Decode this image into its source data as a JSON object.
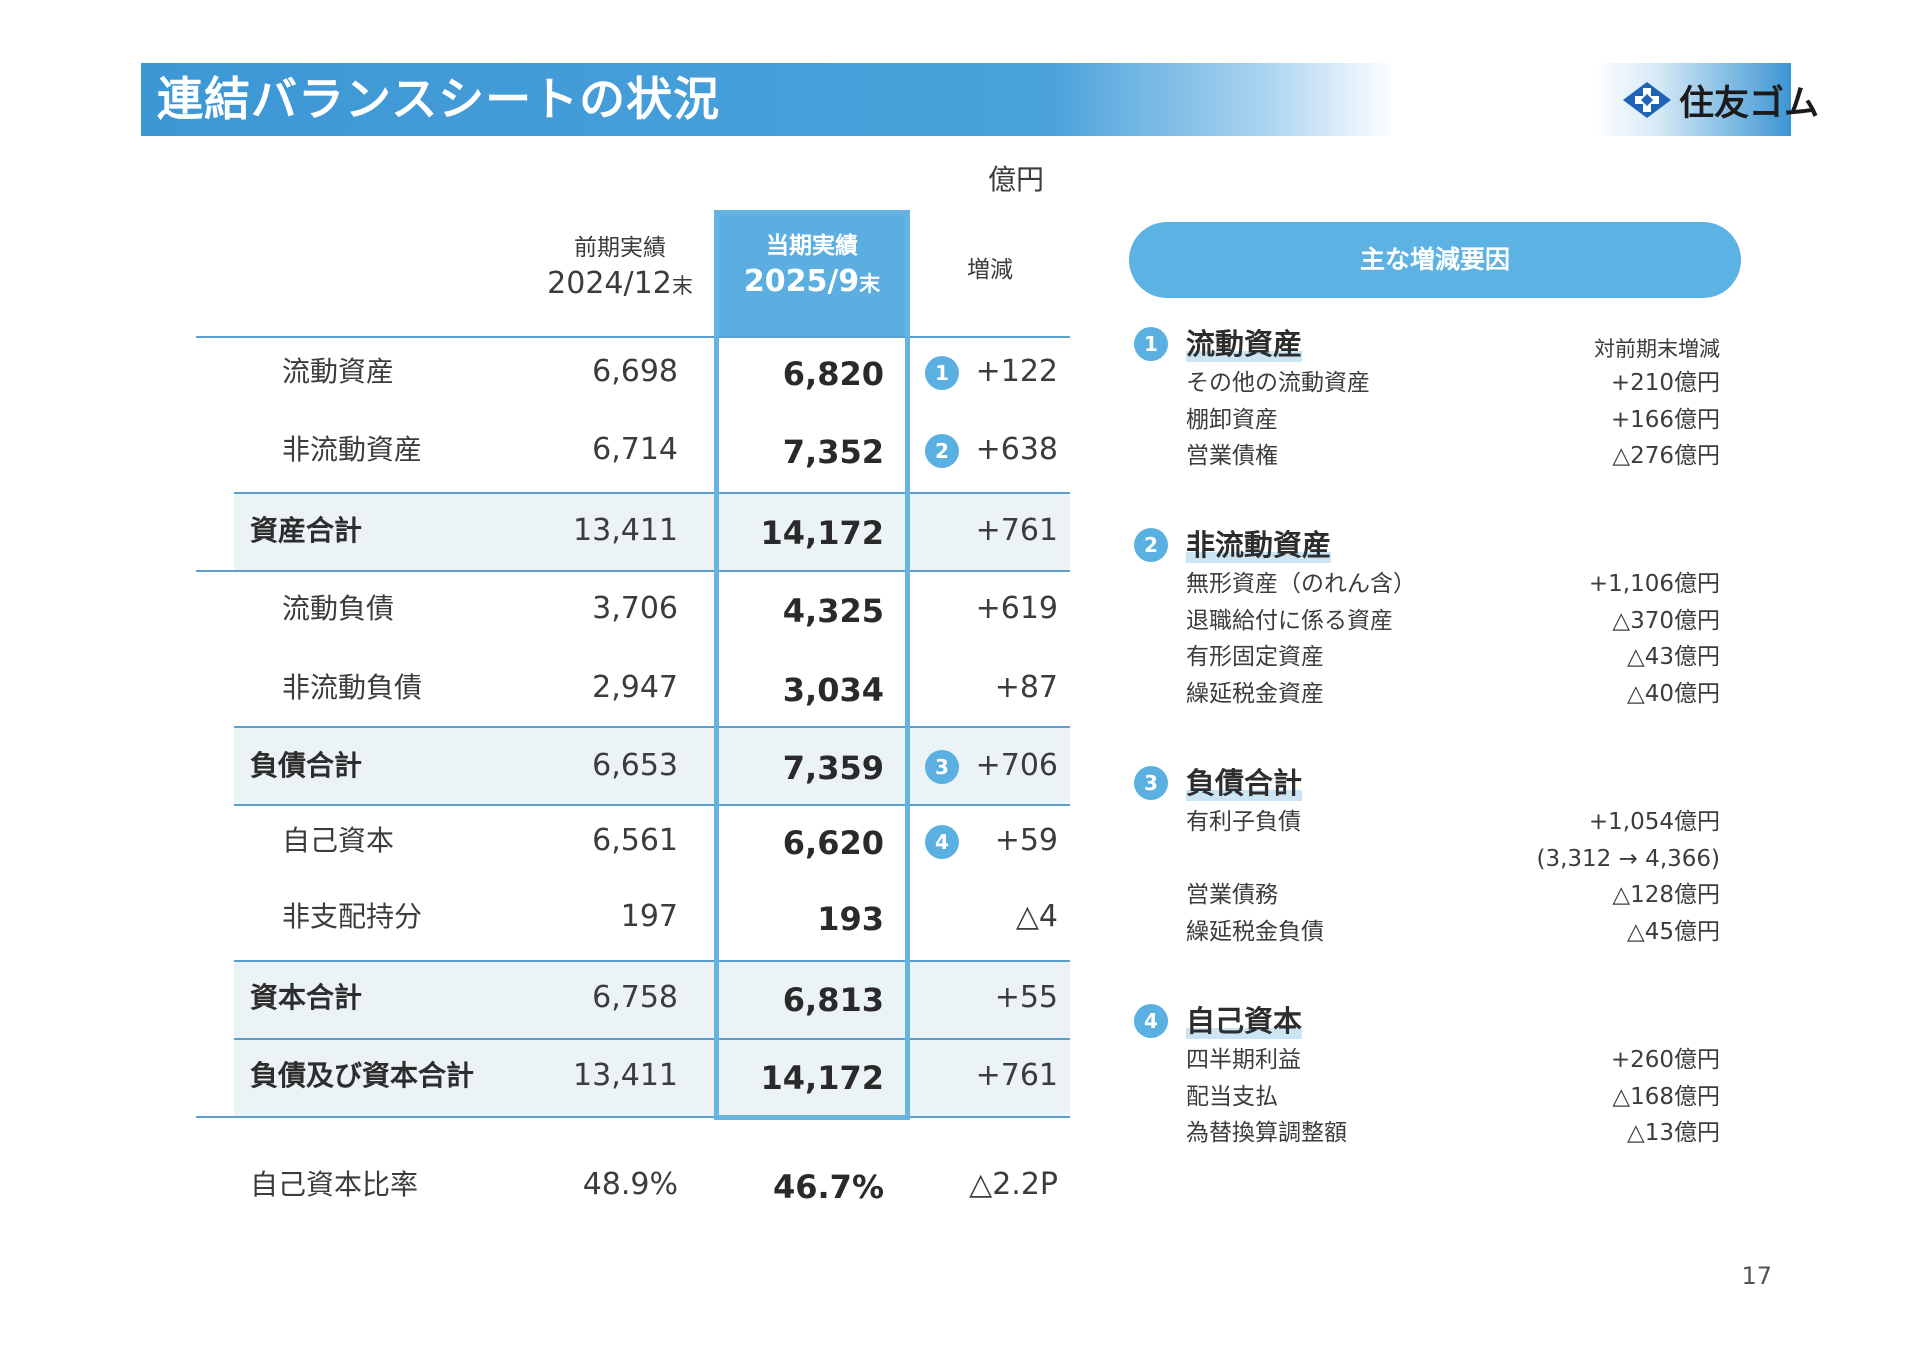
{
  "header": {
    "title": "連結バランスシートの状況",
    "logo_text": "住友ゴム"
  },
  "unit": "億円",
  "table": {
    "headers": {
      "prev": {
        "line1": "前期実績",
        "line2": "2024/12",
        "suffix": "末"
      },
      "curr": {
        "line1": "当期実績",
        "line2": "2025/9",
        "suffix": "末"
      },
      "diff": "増減"
    },
    "rows": [
      {
        "label": "流動資産",
        "prev": "6,698",
        "curr": "6,820",
        "diff": "+122",
        "marker": "1"
      },
      {
        "label": "非流動資産",
        "prev": "6,714",
        "curr": "7,352",
        "diff": "+638",
        "marker": "2"
      },
      {
        "label": "資産合計",
        "prev": "13,411",
        "curr": "14,172",
        "diff": "+761",
        "marker": ""
      },
      {
        "label": "流動負債",
        "prev": "3,706",
        "curr": "4,325",
        "diff": "+619",
        "marker": ""
      },
      {
        "label": "非流動負債",
        "prev": "2,947",
        "curr": "3,034",
        "diff": "+87",
        "marker": ""
      },
      {
        "label": "負債合計",
        "prev": "6,653",
        "curr": "7,359",
        "diff": "+706",
        "marker": "3"
      },
      {
        "label": "自己資本",
        "prev": "6,561",
        "curr": "6,620",
        "diff": "+59",
        "marker": "4"
      },
      {
        "label": "非支配持分",
        "prev": "197",
        "curr": "193",
        "diff": "△4",
        "marker": ""
      },
      {
        "label": "資本合計",
        "prev": "6,758",
        "curr": "6,813",
        "diff": "+55",
        "marker": ""
      },
      {
        "label": "負債及び資本合計",
        "prev": "13,411",
        "curr": "14,172",
        "diff": "+761",
        "marker": ""
      }
    ],
    "ratio": {
      "label": "自己資本比率",
      "prev": "48.9%",
      "curr": "46.7%",
      "diff": "△2.2P"
    }
  },
  "factors": {
    "title": "主な増減要因",
    "column_note": "対前期末増減",
    "sections": [
      {
        "num": "1",
        "title": "流動資産",
        "items": [
          {
            "label": "その他の流動資産",
            "value": "+210億円"
          },
          {
            "label": "棚卸資産",
            "value": "+166億円"
          },
          {
            "label": "営業債権",
            "value": "△276億円"
          }
        ]
      },
      {
        "num": "2",
        "title": "非流動資産",
        "items": [
          {
            "label": "無形資産（のれん含）",
            "value": "+1,106億円"
          },
          {
            "label": "退職給付に係る資産",
            "value": "△370億円"
          },
          {
            "label": "有形固定資産",
            "value": "△43億円"
          },
          {
            "label": "繰延税金資産",
            "value": "△40億円"
          }
        ]
      },
      {
        "num": "3",
        "title": "負債合計",
        "items": [
          {
            "label": "有利子負債",
            "value": "+1,054億円"
          },
          {
            "label": "",
            "value": "(3,312 → 4,366)"
          },
          {
            "label": "営業債務",
            "value": "△128億円"
          },
          {
            "label": "繰延税金負債",
            "value": "△45億円"
          }
        ]
      },
      {
        "num": "4",
        "title": "自己資本",
        "items": [
          {
            "label": "四半期利益",
            "value": "+260億円"
          },
          {
            "label": "配当支払",
            "value": "△168億円"
          },
          {
            "label": "為替換算調整額",
            "value": "△13億円"
          }
        ]
      }
    ]
  },
  "page_number": "17"
}
